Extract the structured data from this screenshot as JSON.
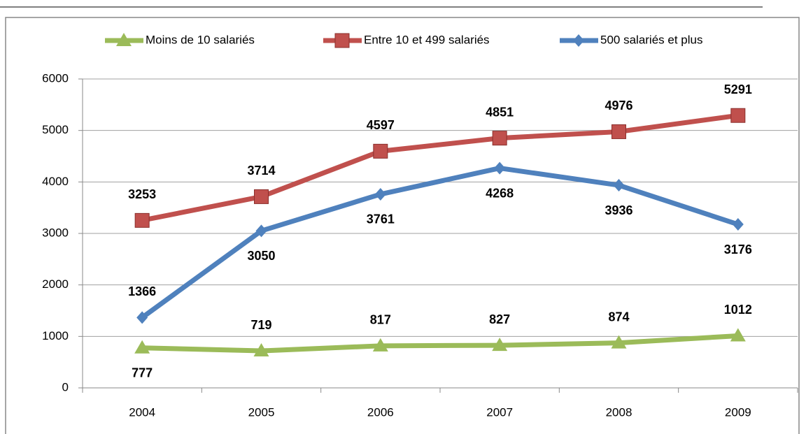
{
  "chart_data": {
    "type": "line",
    "categories": [
      "2004",
      "2005",
      "2006",
      "2007",
      "2008",
      "2009"
    ],
    "series": [
      {
        "name": "Moins de 10 salariés",
        "color": "#9bbb59",
        "marker": "triangle",
        "values": [
          777,
          719,
          817,
          827,
          874,
          1012
        ]
      },
      {
        "name": "Entre 10 et 499 salariés",
        "color": "#c0504d",
        "marker": "square",
        "values": [
          3253,
          3714,
          4597,
          4851,
          4976,
          5291
        ]
      },
      {
        "name": "500 salariés et plus",
        "color": "#4f81bd",
        "marker": "diamond",
        "values": [
          1366,
          3050,
          3761,
          4268,
          3936,
          3176
        ]
      }
    ],
    "ylim": [
      0,
      6000
    ],
    "yticks": [
      0,
      1000,
      2000,
      3000,
      4000,
      5000,
      6000
    ],
    "grid": true,
    "legend": "top"
  }
}
